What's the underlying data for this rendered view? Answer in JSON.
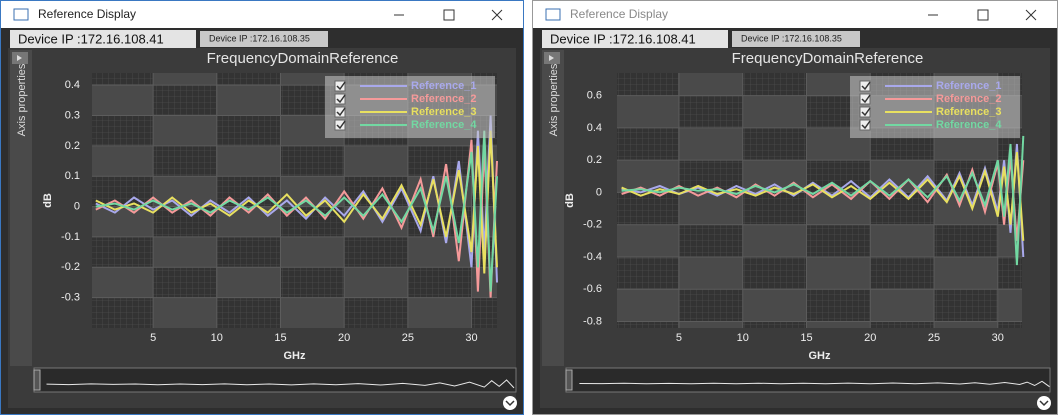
{
  "windows": [
    {
      "title": "Reference Display",
      "tabs": [
        "Device IP :172.16.108.41",
        "Device IP :172.16.108.35"
      ],
      "side_panel": "Axis properties"
    },
    {
      "title": "Reference Display",
      "tabs": [
        "Device IP :172.16.108.41",
        "Device IP :172.16.108.35"
      ],
      "side_panel": "Axis properties"
    }
  ],
  "chart_data": [
    {
      "type": "line",
      "title": "FrequencyDomainReference",
      "x_label": "GHz",
      "y_label": "dB",
      "x": [
        0.5,
        2,
        3.5,
        5,
        6.5,
        8,
        9.5,
        11,
        12.5,
        14,
        15.5,
        17,
        18.5,
        20,
        21.5,
        23,
        24.5,
        26,
        27,
        28,
        29,
        30,
        30.5,
        31,
        31.5,
        32
      ],
      "series": [
        {
          "name": "Reference_1",
          "color": "#a9a9ec",
          "values": [
            0.01,
            -0.02,
            0.03,
            -0.01,
            0.02,
            -0.03,
            0.02,
            -0.02,
            0.03,
            -0.03,
            0.02,
            -0.04,
            0.03,
            -0.03,
            0.05,
            -0.05,
            0.06,
            -0.08,
            0.1,
            -0.12,
            0.15,
            -0.2,
            0.25,
            -0.15,
            0.3,
            -0.25
          ]
        },
        {
          "name": "Reference_2",
          "color": "#f59a9a",
          "values": [
            -0.01,
            0.02,
            -0.02,
            0.03,
            -0.02,
            0.02,
            -0.03,
            0.03,
            -0.02,
            0.04,
            -0.03,
            0.03,
            -0.04,
            0.05,
            -0.04,
            0.06,
            -0.07,
            0.09,
            -0.1,
            0.14,
            -0.18,
            0.22,
            -0.28,
            0.2,
            -0.3,
            0.15
          ]
        },
        {
          "name": "Reference_3",
          "color": "#e8e060",
          "values": [
            0.02,
            -0.01,
            0.01,
            -0.02,
            0.03,
            -0.02,
            0.01,
            -0.03,
            0.02,
            -0.02,
            0.04,
            -0.03,
            0.02,
            -0.05,
            0.04,
            -0.04,
            0.07,
            -0.06,
            0.09,
            -0.1,
            0.12,
            -0.15,
            0.2,
            -0.22,
            0.25,
            -0.2
          ]
        },
        {
          "name": "Reference_4",
          "color": "#72d8a2",
          "values": [
            0,
            0.01,
            -0.01,
            0.02,
            -0.01,
            0.01,
            -0.02,
            0.02,
            -0.01,
            0.03,
            -0.02,
            0.02,
            -0.03,
            0.03,
            -0.03,
            0.04,
            -0.05,
            0.06,
            -0.08,
            0.1,
            -0.12,
            0.18,
            -0.2,
            0.25,
            -0.28,
            0.1
          ]
        }
      ],
      "xlim": [
        0.2,
        32
      ],
      "ylim": [
        -0.4,
        0.44
      ],
      "xticks": [
        5,
        10,
        15,
        20,
        25,
        30
      ],
      "yticks": [
        0.4,
        0.3,
        0.2,
        0.1,
        0,
        -0.1,
        -0.2,
        -0.3
      ],
      "grid": true,
      "legend": "top-right"
    },
    {
      "type": "line",
      "title": "FrequencyDomainReference",
      "x_label": "GHz",
      "y_label": "dB",
      "x": [
        0.5,
        2,
        3.5,
        5,
        6.5,
        8,
        9.5,
        11,
        12.5,
        14,
        15.5,
        17,
        18.5,
        20,
        21.5,
        23,
        24.5,
        26,
        27,
        28,
        29,
        30,
        30.5,
        31,
        31.5,
        32
      ],
      "series": [
        {
          "name": "Reference_1",
          "color": "#a9a9ec",
          "values": [
            0.02,
            0,
            0.04,
            -0.01,
            0.03,
            -0.02,
            0.04,
            -0.01,
            0.05,
            -0.02,
            0.06,
            -0.02,
            0.07,
            -0.03,
            0.08,
            -0.03,
            0.1,
            -0.05,
            0.12,
            -0.08,
            0.15,
            -0.12,
            0.2,
            -0.25,
            0.3,
            -0.4
          ]
        },
        {
          "name": "Reference_2",
          "color": "#f59a9a",
          "values": [
            -0.01,
            0.03,
            -0.02,
            0.04,
            -0.02,
            0.03,
            -0.03,
            0.05,
            -0.02,
            0.06,
            -0.03,
            0.05,
            -0.04,
            0.07,
            -0.04,
            0.08,
            -0.06,
            0.11,
            -0.08,
            0.14,
            -0.12,
            0.18,
            -0.2,
            0.22,
            -0.3,
            0.2
          ]
        },
        {
          "name": "Reference_3",
          "color": "#e8e060",
          "values": [
            0.03,
            -0.02,
            0.02,
            -0.01,
            0.04,
            -0.01,
            0.02,
            -0.02,
            0.03,
            -0.01,
            0.05,
            -0.03,
            0.04,
            -0.04,
            0.06,
            -0.04,
            0.08,
            -0.06,
            0.1,
            -0.1,
            0.13,
            -0.15,
            0.16,
            -0.2,
            0.25,
            -0.3
          ]
        },
        {
          "name": "Reference_4",
          "color": "#72d8a2",
          "values": [
            0.01,
            0.02,
            0,
            0.03,
            0.01,
            0.02,
            -0.01,
            0.04,
            0,
            0.05,
            -0.01,
            0.06,
            -0.02,
            0.07,
            -0.02,
            0.08,
            -0.03,
            0.1,
            -0.05,
            0.12,
            -0.08,
            0.2,
            -0.15,
            0.3,
            -0.45,
            0.35
          ]
        }
      ],
      "xlim": [
        0.14,
        31.9
      ],
      "ylim": [
        -0.84,
        0.74
      ],
      "xticks": [
        5,
        10,
        15,
        20,
        25,
        30
      ],
      "yticks": [
        0.6,
        0.4,
        0.2,
        0,
        -0.2,
        -0.4,
        -0.6,
        -0.8
      ],
      "grid": true,
      "legend": "top-right"
    }
  ]
}
